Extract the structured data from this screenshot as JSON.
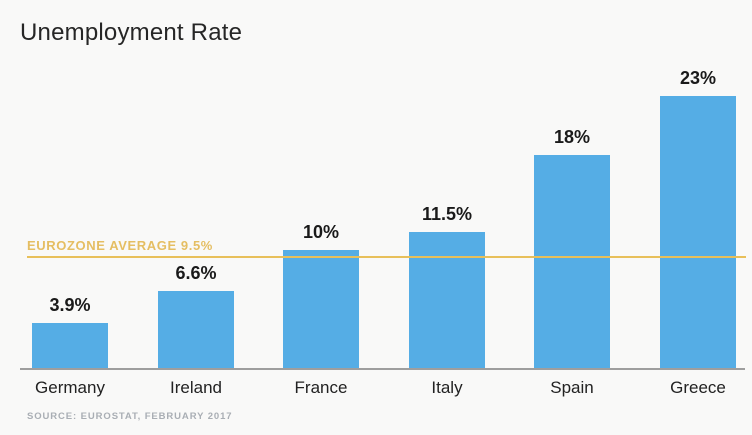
{
  "page": {
    "background": "#f9f9f8"
  },
  "chart_data": {
    "type": "bar",
    "title": "Unemployment Rate",
    "categories": [
      "Germany",
      "Ireland",
      "France",
      "Italy",
      "Spain",
      "Greece"
    ],
    "values": [
      3.9,
      6.6,
      10,
      11.5,
      18,
      23
    ],
    "value_labels": [
      "3.9%",
      "6.6%",
      "10%",
      "11.5%",
      "18%",
      "23%"
    ],
    "xlabel": "",
    "ylabel": "",
    "ylim": [
      0,
      25
    ],
    "grid": false,
    "legend": "none",
    "bar_color": "#55ADE5",
    "axis_line_color": "#9E9E9E",
    "value_label_color": "#1A1A1A",
    "category_label_color": "#222222",
    "title_color": "#262626",
    "reference_line": {
      "label": "EUROZONE AVERAGE 9.5%",
      "value": 9.5,
      "color": "#E8C05A",
      "text_color": "#E5BE62"
    },
    "source": "SOURCE: EUROSTAT, FEBRUARY 2017"
  }
}
